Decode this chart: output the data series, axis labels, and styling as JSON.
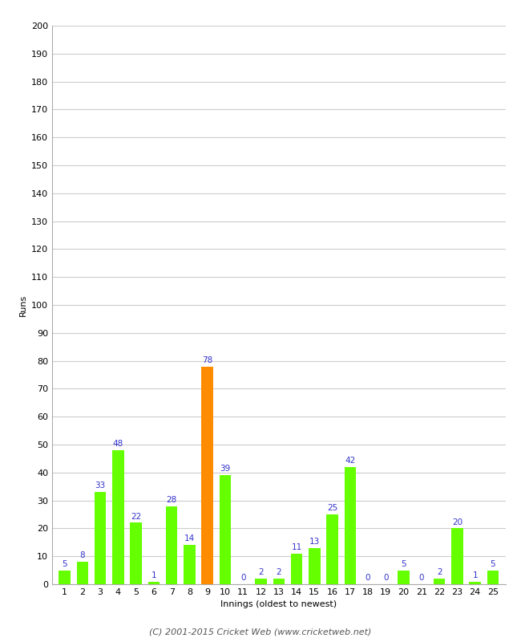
{
  "xlabel": "Innings (oldest to newest)",
  "ylabel": "Runs",
  "values": [
    5,
    8,
    33,
    48,
    22,
    1,
    28,
    14,
    78,
    39,
    0,
    2,
    2,
    11,
    13,
    25,
    42,
    0,
    0,
    5,
    0,
    2,
    20,
    1,
    5
  ],
  "innings": [
    1,
    2,
    3,
    4,
    5,
    6,
    7,
    8,
    9,
    10,
    11,
    12,
    13,
    14,
    15,
    16,
    17,
    18,
    19,
    20,
    21,
    22,
    23,
    24,
    25
  ],
  "highlight_index": 8,
  "bar_color": "#66ff00",
  "highlight_color": "#ff8c00",
  "label_color": "#3333cc",
  "ylim": [
    0,
    200
  ],
  "yticks": [
    0,
    10,
    20,
    30,
    40,
    50,
    60,
    70,
    80,
    90,
    100,
    110,
    120,
    130,
    140,
    150,
    160,
    170,
    180,
    190,
    200
  ],
  "background_color": "#ffffff",
  "grid_color": "#cccccc",
  "footer": "(C) 2001-2015 Cricket Web (www.cricketweb.net)",
  "label_fontsize": 7.5,
  "axis_label_fontsize": 8,
  "tick_fontsize": 8,
  "footer_fontsize": 8,
  "bar_width": 0.65
}
